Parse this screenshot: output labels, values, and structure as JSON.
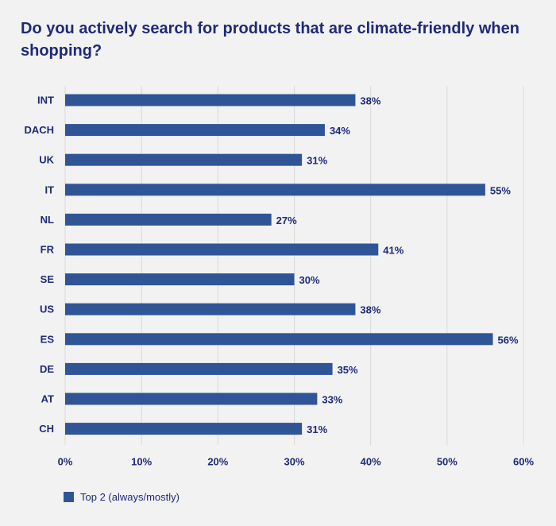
{
  "title": "Do you actively search for products that are climate-friendly when shopping?",
  "colors": {
    "bar": "#2f5597",
    "text": "#1e2a78",
    "grid": "#d9d9d9",
    "background": "#f2f2f2"
  },
  "legend": {
    "label": "Top 2 (always/mostly)"
  },
  "chart_data": {
    "type": "bar",
    "orientation": "horizontal",
    "categories": [
      "INT",
      "DACH",
      "UK",
      "IT",
      "NL",
      "FR",
      "SE",
      "US",
      "ES",
      "DE",
      "AT",
      "CH"
    ],
    "series": [
      {
        "name": "Top 2 (always/mostly)",
        "values": [
          38,
          34,
          31,
          55,
          27,
          41,
          30,
          38,
          56,
          35,
          33,
          31
        ]
      }
    ],
    "value_labels": [
      "38%",
      "34%",
      "31%",
      "55%",
      "27%",
      "41%",
      "30%",
      "38%",
      "56%",
      "35%",
      "33%",
      "31%"
    ],
    "xlim": [
      0,
      60
    ],
    "xticks": [
      0,
      10,
      20,
      30,
      40,
      50,
      60
    ],
    "xtick_labels": [
      "0%",
      "10%",
      "20%",
      "30%",
      "40%",
      "50%",
      "60%"
    ],
    "grid": "vertical",
    "legend_position": "bottom-left"
  }
}
